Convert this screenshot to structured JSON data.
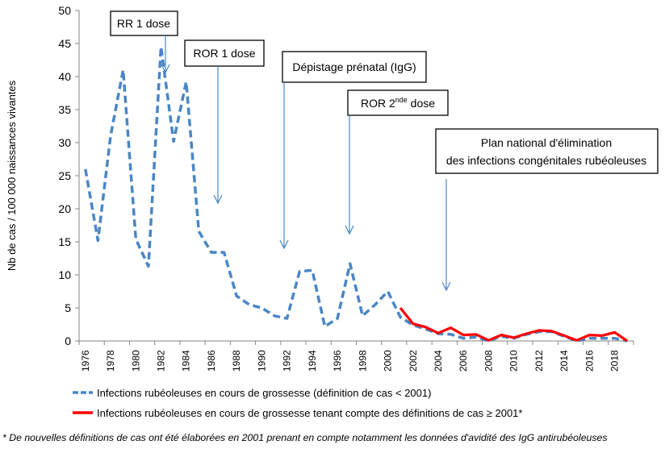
{
  "chart_data": {
    "type": "line",
    "title": "",
    "xlabel": "",
    "ylabel": "Nb de cas / 100 000 naissances vivantes",
    "ylim": [
      0,
      50
    ],
    "yticks": [
      0,
      5,
      10,
      15,
      20,
      25,
      30,
      35,
      40,
      45,
      50
    ],
    "xticks": [
      "1976",
      "1978",
      "1980",
      "1982",
      "1984",
      "1986",
      "1988",
      "1990",
      "1992",
      "1994",
      "1996",
      "1998",
      "2000",
      "2002",
      "2004",
      "2006",
      "2008",
      "2010",
      "2012",
      "2014",
      "2016",
      "2018"
    ],
    "grid": false,
    "legend_position": "bottom",
    "x": [
      1976,
      1977,
      1978,
      1979,
      1980,
      1981,
      1982,
      1983,
      1984,
      1985,
      1986,
      1987,
      1988,
      1989,
      1990,
      1991,
      1992,
      1993,
      1994,
      1995,
      1996,
      1997,
      1998,
      1999,
      2000,
      2001,
      2002,
      2003,
      2004,
      2005,
      2006,
      2007,
      2008,
      2009,
      2010,
      2011,
      2012,
      2013,
      2014,
      2015,
      2016,
      2017,
      2018,
      2019
    ],
    "series": [
      {
        "name": "Infections rubéoleuses en cours de grossesse (définition de cas < 2001)",
        "color": "#4A86C5",
        "style": "dashed",
        "values": [
          26,
          15.2,
          31,
          41,
          15.4,
          11.3,
          44.5,
          30.2,
          39.2,
          16.6,
          13.4,
          13.4,
          6.8,
          5.5,
          5.0,
          3.8,
          3.4,
          10.5,
          10.7,
          2.2,
          3.4,
          11.7,
          3.8,
          5.5,
          7.5,
          3.6,
          2.4,
          1.8,
          1.1,
          1.0,
          0.4,
          0.6,
          0,
          0.7,
          0.4,
          1.0,
          1.4,
          1.4,
          0.7,
          0,
          0.4,
          0.4,
          0.4,
          0
        ]
      },
      {
        "name": "Infections rubéoleuses en cours de grossesse tenant compte des définitions de cas ≥ 2001*",
        "color": "#FF0000",
        "style": "solid",
        "values": [
          null,
          null,
          null,
          null,
          null,
          null,
          null,
          null,
          null,
          null,
          null,
          null,
          null,
          null,
          null,
          null,
          null,
          null,
          null,
          null,
          null,
          null,
          null,
          null,
          null,
          5.0,
          2.6,
          2.1,
          1.2,
          2.0,
          0.9,
          1.0,
          0.1,
          0.9,
          0.5,
          1.1,
          1.6,
          1.5,
          0.8,
          0.1,
          0.9,
          0.8,
          1.3,
          0
        ]
      }
    ],
    "annotations": [
      {
        "text": "RR 1 dose"
      },
      {
        "text": "ROR 1 dose"
      },
      {
        "text": "Dépistage prénatal (IgG)"
      },
      {
        "text": "ROR 2",
        "sup": "nde",
        "tail": " dose"
      },
      {
        "line1": "Plan national d'élimination",
        "line2": "des infections congénitales rubéoleuses"
      }
    ],
    "footnote": "* De nouvelles définitions de cas ont été élaborées en 2001 prenant en compte notamment les données d'avidité des IgG antirubéoleuses"
  }
}
